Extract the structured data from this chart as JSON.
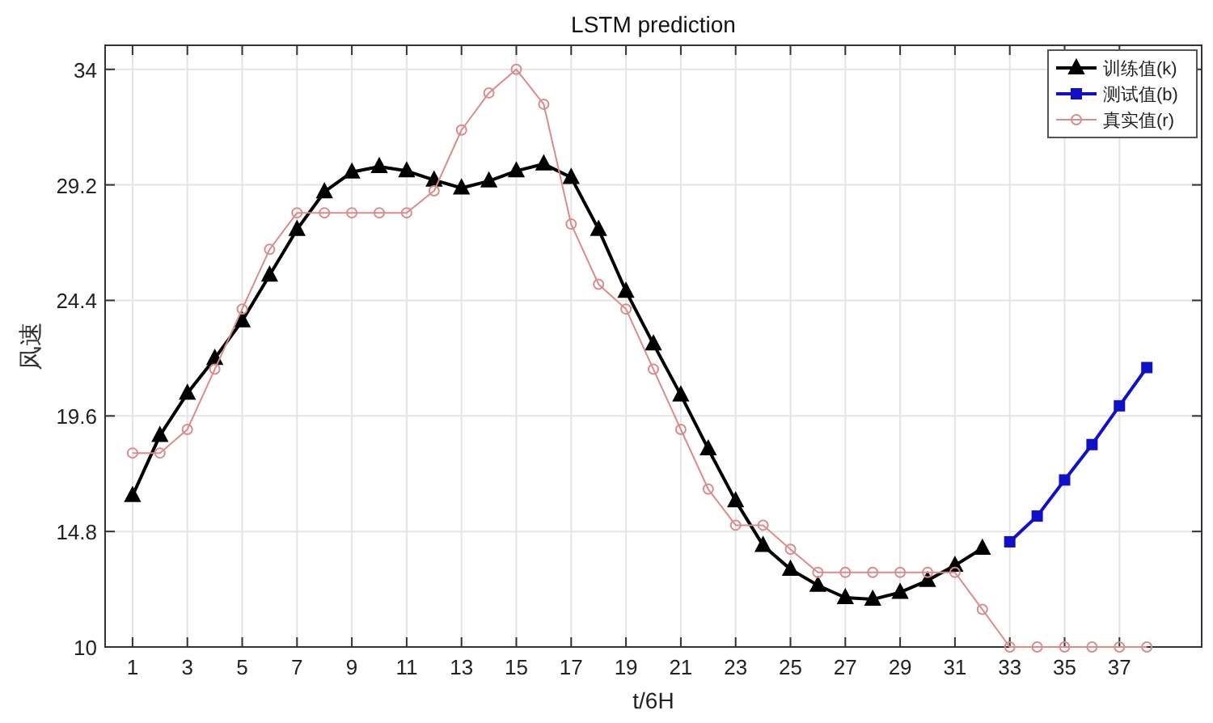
{
  "chart_data": {
    "type": "line",
    "title": "LSTM prediction",
    "xlabel": "t/6H",
    "ylabel": "风速",
    "xlim": [
      0,
      40
    ],
    "xticks": [
      1,
      3,
      5,
      7,
      9,
      11,
      13,
      15,
      17,
      19,
      21,
      23,
      25,
      27,
      29,
      31,
      33,
      35,
      37
    ],
    "ylim": [
      10,
      35
    ],
    "yticks": [
      10,
      14.8,
      19.6,
      24.4,
      29.2,
      34
    ],
    "grid": true,
    "legend": "top right",
    "series": [
      {
        "name": "训练值(k)",
        "color": "#000000",
        "marker": "triangle",
        "x": [
          1,
          2,
          3,
          4,
          5,
          6,
          7,
          8,
          9,
          10,
          11,
          12,
          13,
          14,
          15,
          16,
          17,
          18,
          19,
          20,
          21,
          22,
          23,
          24,
          25,
          26,
          27,
          28,
          29,
          30,
          31,
          32
        ],
        "values": [
          16.29,
          18.79,
          20.54,
          21.99,
          23.55,
          25.45,
          27.35,
          28.91,
          29.73,
          29.96,
          29.78,
          29.4,
          29.07,
          29.36,
          29.78,
          30.07,
          29.51,
          27.35,
          24.78,
          22.59,
          20.47,
          18.23,
          16.07,
          14.22,
          13.23,
          12.56,
          12.05,
          11.98,
          12.27,
          12.76,
          13.39,
          14.1
        ]
      },
      {
        "name": "测试值(b)",
        "color": "#1010c8",
        "marker": "square",
        "x": [
          33,
          34,
          35,
          36,
          37,
          38
        ],
        "values": [
          14.37,
          15.44,
          16.94,
          18.41,
          20.02,
          21.61
        ]
      },
      {
        "name": "真实值(r)",
        "color": "#d98c8c",
        "marker": "circle",
        "x": [
          1,
          2,
          3,
          4,
          5,
          6,
          7,
          8,
          9,
          10,
          11,
          12,
          13,
          14,
          15,
          16,
          17,
          18,
          19,
          20,
          21,
          22,
          23,
          24,
          25,
          26,
          27,
          28,
          29,
          30,
          31,
          32,
          33,
          34,
          35,
          36,
          37,
          38
        ],
        "values": [
          18.06,
          18.06,
          19.04,
          21.54,
          24.04,
          26.52,
          28.04,
          28.04,
          28.04,
          28.04,
          28.04,
          28.95,
          31.48,
          33.02,
          34.0,
          32.55,
          27.57,
          25.07,
          24.04,
          21.54,
          19.04,
          16.56,
          15.06,
          15.06,
          14.06,
          13.1,
          13.1,
          13.1,
          13.1,
          13.1,
          13.1,
          11.56,
          10,
          10,
          10,
          10,
          10,
          10
        ]
      }
    ]
  }
}
